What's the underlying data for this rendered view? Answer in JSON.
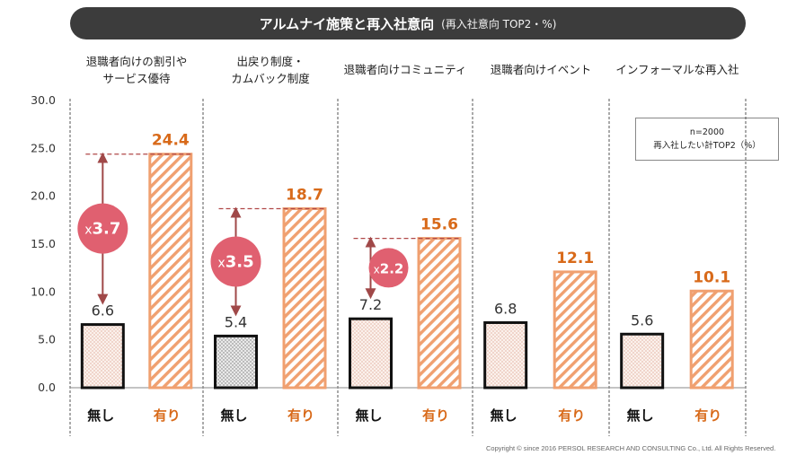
{
  "title": "アルムナイ施策と再入社意向",
  "subtitle": "(再入社意向 TOP2・%)",
  "note": {
    "line1": "n=2000",
    "line2": "再入社したい計TOP2（%）"
  },
  "copyright": "Copyright © since 2016 PERSOL RESEARCH AND CONSULTING Co., Ltd. All Rights Reserved.",
  "colors": {
    "title_bg": "#3c3c3c",
    "orange": "#f0a070",
    "orange_text": "#d86a1a",
    "ratio_circle": "#e06070",
    "arrow": "#a04848"
  },
  "chart_data": {
    "type": "bar",
    "categories": [
      [
        "退職者向けの割引や",
        "サービス優待"
      ],
      [
        "出戻り制度・",
        "カムバック制度"
      ],
      [
        "退職者向けコミュニティ"
      ],
      [
        "退職者向けイベント"
      ],
      [
        "インフォーマルな再入社"
      ]
    ],
    "group_labels": [
      "無し",
      "有り"
    ],
    "series": [
      {
        "name": "無し",
        "values": [
          6.6,
          5.4,
          7.2,
          6.8,
          5.6
        ],
        "labels": [
          "6.6",
          "5.4",
          "7.2",
          "6.8",
          "5.6"
        ]
      },
      {
        "name": "有り",
        "values": [
          24.4,
          18.7,
          15.6,
          12.1,
          10.1
        ],
        "labels": [
          "24.4",
          "18.7",
          "15.6",
          "12.1",
          "10.1"
        ]
      }
    ],
    "ratios": [
      {
        "category_index": 0,
        "prefix": "x",
        "value": "3.7"
      },
      {
        "category_index": 1,
        "prefix": "x",
        "value": "3.5"
      },
      {
        "category_index": 2,
        "prefix": "x",
        "value": "2.2"
      }
    ],
    "yticks": [
      "0.0",
      "5.0",
      "10.0",
      "15.0",
      "20.0",
      "25.0",
      "30.0"
    ],
    "ylim": [
      0,
      30
    ],
    "xlabel": "",
    "ylabel": "",
    "grid": false
  }
}
